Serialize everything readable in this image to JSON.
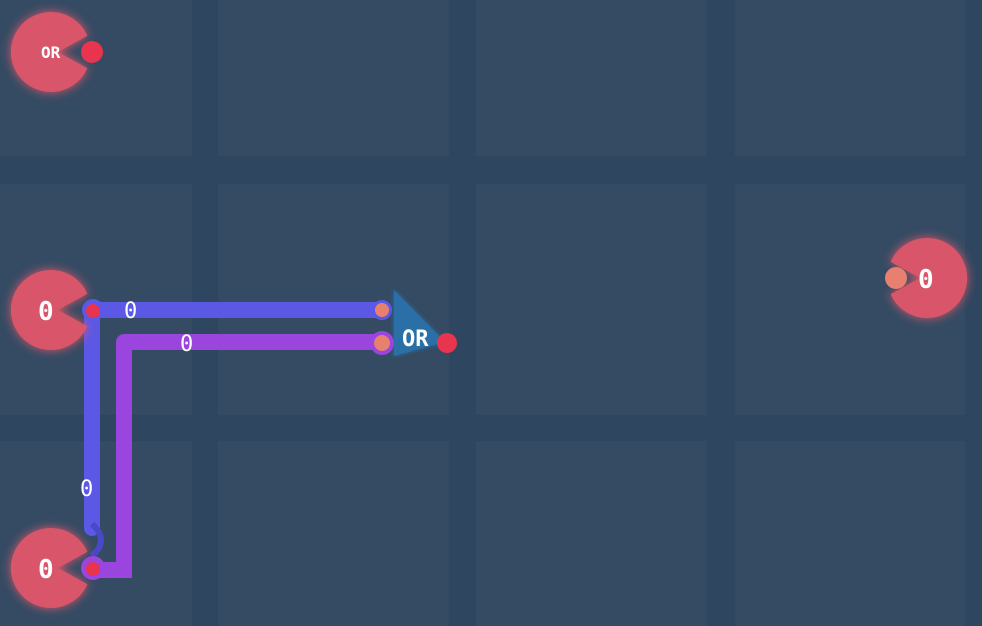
{
  "colors": {
    "background": "#2f4660",
    "cell": "#344b63",
    "node": "#d9576a",
    "node_glow": "#ff6b7d",
    "port_red": "#e8344f",
    "port_pink": "#e8806f",
    "wire_blue": "#5b58e6",
    "wire_purple": "#9a45de",
    "gate": "#2c6fa6"
  },
  "nodes": {
    "or_top": {
      "label": "OR"
    },
    "input_a": {
      "label": "0"
    },
    "input_b": {
      "label": "0"
    },
    "output": {
      "label": "0"
    }
  },
  "gate": {
    "label": "OR"
  },
  "wires": {
    "blue_label_top": "0",
    "blue_label_side": "0",
    "purple_label": "0"
  }
}
